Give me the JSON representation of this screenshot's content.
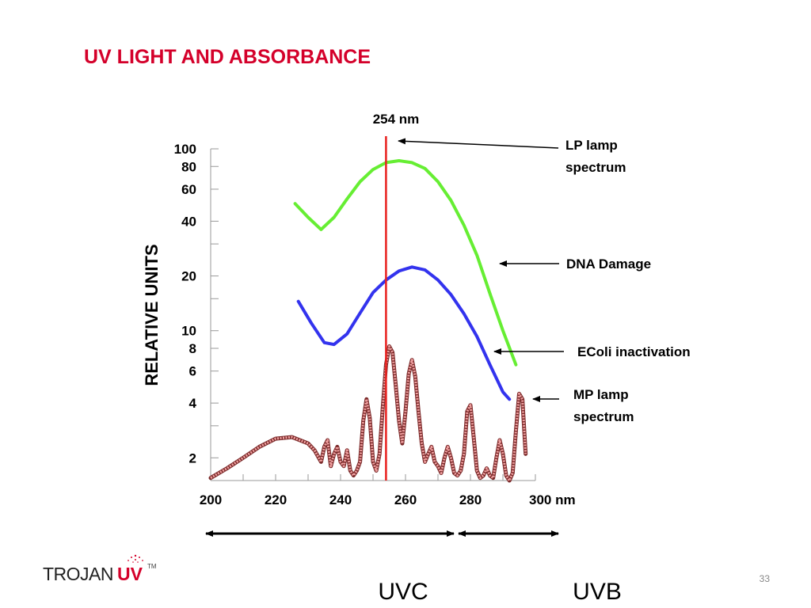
{
  "slide": {
    "title": "UV LIGHT AND ABSORBANCE",
    "page_number": "33",
    "logo_text_1": "TROJAN",
    "logo_text_2": "UV",
    "logo_tm": "TM"
  },
  "chart_data": {
    "type": "line",
    "ylabel": "RELATIVE UNITS",
    "y_scale": "log",
    "ylim": [
      1.5,
      100
    ],
    "xlim": [
      200,
      300
    ],
    "x_unit": "nm",
    "x_ticks": [
      "200",
      "220",
      "240",
      "260",
      "280",
      "300 nm"
    ],
    "x_tick_values": [
      200,
      220,
      240,
      260,
      280,
      300
    ],
    "y_ticks": [
      "100",
      "80",
      "60",
      "40",
      "20",
      "10",
      "8",
      "6",
      "4",
      "2"
    ],
    "y_tick_values": [
      100,
      80,
      60,
      40,
      20,
      10,
      8,
      6,
      4,
      2
    ],
    "marker_line": {
      "x": 254,
      "label": "254 nm",
      "color": "#e8211f"
    },
    "series": [
      {
        "name": "DNA Damage",
        "color": "#66ee33",
        "x": [
          226,
          230,
          234,
          238,
          242,
          246,
          250,
          254,
          258,
          262,
          266,
          270,
          274,
          278,
          282,
          286,
          290,
          294
        ],
        "y": [
          50,
          42,
          36,
          42,
          53,
          66,
          77,
          84,
          86,
          84,
          78,
          66,
          52,
          38,
          26,
          16,
          10,
          6.5
        ]
      },
      {
        "name": "EColi inactivation",
        "color": "#3333ee",
        "x": [
          227,
          231,
          235,
          238,
          242,
          246,
          250,
          254,
          258,
          262,
          266,
          270,
          274,
          278,
          282,
          286,
          290,
          292
        ],
        "y": [
          14.5,
          11,
          8.6,
          8.4,
          9.6,
          12.5,
          16.2,
          19,
          21.3,
          22.4,
          21.6,
          19,
          15.8,
          12.4,
          9.3,
          6.5,
          4.6,
          4.2
        ]
      },
      {
        "name": "LP lamp spectrum",
        "color": "#e8211f",
        "x": [
          254
        ],
        "y": [
          100
        ]
      },
      {
        "name": "MP lamp spectrum",
        "color": "#a84a4a",
        "x": [
          200,
          205,
          210,
          215,
          220,
          225,
          230,
          232,
          234,
          235,
          236,
          237,
          238,
          239,
          240,
          241,
          242,
          243,
          244,
          245,
          246,
          247,
          248,
          249,
          250,
          251,
          252,
          253,
          254,
          255,
          256,
          257,
          258,
          259,
          260,
          261,
          262,
          263,
          264,
          265,
          266,
          267,
          268,
          269,
          270,
          271,
          272,
          273,
          274,
          275,
          276,
          277,
          278,
          279,
          280,
          281,
          282,
          283,
          284,
          285,
          286,
          287,
          288,
          289,
          290,
          291,
          292,
          293,
          294,
          295,
          296,
          297
        ],
        "y": [
          1.55,
          1.75,
          2.0,
          2.3,
          2.55,
          2.6,
          2.4,
          2.2,
          1.9,
          2.3,
          2.5,
          1.8,
          2.1,
          2.3,
          1.9,
          1.8,
          2.2,
          1.7,
          1.6,
          1.7,
          1.9,
          3.2,
          4.2,
          3.3,
          1.9,
          1.7,
          2.1,
          3.8,
          6.5,
          8.2,
          7.6,
          5.0,
          3.2,
          2.4,
          3.6,
          5.8,
          6.9,
          5.6,
          3.6,
          2.4,
          1.9,
          2.1,
          2.3,
          1.9,
          1.8,
          1.65,
          2.0,
          2.3,
          2.0,
          1.65,
          1.6,
          1.7,
          2.1,
          3.6,
          3.9,
          2.6,
          1.7,
          1.55,
          1.6,
          1.75,
          1.6,
          1.55,
          2.0,
          2.5,
          2.1,
          1.6,
          1.5,
          1.65,
          2.8,
          4.5,
          4.2,
          2.1
        ]
      }
    ],
    "annotations": [
      {
        "text": "LP lamp",
        "text2": "spectrum",
        "points_to": "LP lamp spectrum"
      },
      {
        "text": "DNA Damage",
        "points_to": "DNA Damage"
      },
      {
        "text": "EColi inactivation",
        "points_to": "EColi inactivation"
      },
      {
        "text": "MP lamp",
        "text2": "spectrum",
        "points_to": "MP lamp spectrum"
      }
    ],
    "bands": [
      {
        "label": "UVC",
        "from": 200,
        "to": 277
      },
      {
        "label": "UVB",
        "from": 277,
        "to": 312
      }
    ]
  }
}
